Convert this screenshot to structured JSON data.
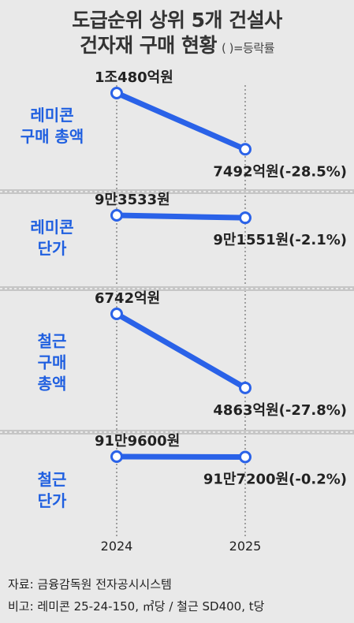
{
  "header": {
    "title_line1": "도급순위 상위 5개 건설사",
    "title_line2": "건자재 구매 현황",
    "note": "( )=등락률"
  },
  "footer": {
    "source": "자료: 금융감독원 전자공시시스템",
    "remark": "비고: 레미콘 25-24-150, ㎥당 / 철근 SD400, t당"
  },
  "colors": {
    "accent": "#1f5fe0",
    "line": "#2a62e8",
    "background": "#e9e9e9",
    "divider": "#bdbdbd"
  },
  "chart_data": {
    "type": "line",
    "x": [
      "2024",
      "2025"
    ],
    "grid": false,
    "panels": [
      {
        "label": "레미콘\n구매 총액",
        "values": [
          10480,
          7492
        ],
        "unit": "억원",
        "start_label": "1조480억원",
        "end_label": "7492억원(-28.5%)",
        "change_pct": -28.5
      },
      {
        "label": "레미콘\n단가",
        "values": [
          93533,
          91551
        ],
        "unit": "원",
        "start_label": "9만3533원",
        "end_label": "9만1551원(-2.1%)",
        "change_pct": -2.1
      },
      {
        "label": "철근\n구매\n총액",
        "values": [
          6742,
          4863
        ],
        "unit": "억원",
        "start_label": "6742억원",
        "end_label": "4863억원(-27.8%)",
        "change_pct": -27.8
      },
      {
        "label": "철근\n단가",
        "values": [
          919600,
          917200
        ],
        "unit": "원",
        "start_label": "91만9600원",
        "end_label": "91만7200원(-0.2%)",
        "change_pct": -0.2
      }
    ]
  }
}
